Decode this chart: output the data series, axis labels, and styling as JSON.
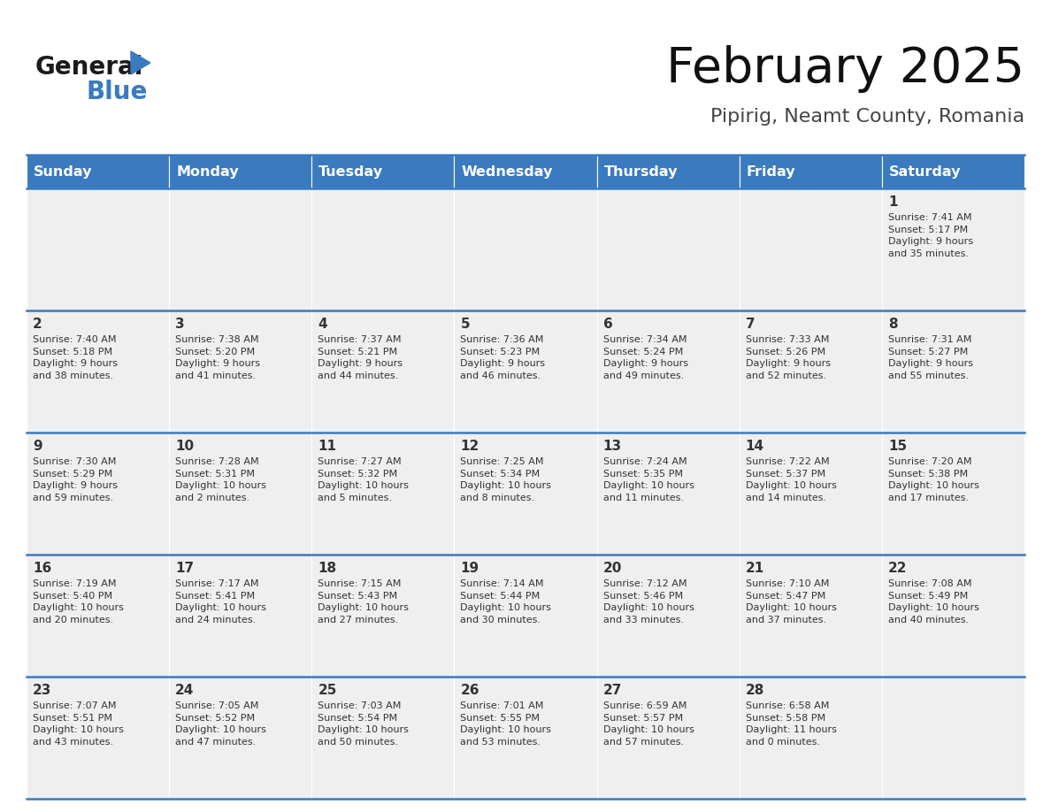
{
  "title": "February 2025",
  "subtitle": "Pipirig, Neamt County, Romania",
  "header_color": "#3a7abf",
  "header_text_color": "#ffffff",
  "cell_bg_color": "#efefef",
  "border_color": "#3a7abf",
  "day_number_color": "#333333",
  "cell_text_color": "#333333",
  "days_of_week": [
    "Sunday",
    "Monday",
    "Tuesday",
    "Wednesday",
    "Thursday",
    "Friday",
    "Saturday"
  ],
  "calendar_data": [
    [
      {
        "day": "",
        "info": ""
      },
      {
        "day": "",
        "info": ""
      },
      {
        "day": "",
        "info": ""
      },
      {
        "day": "",
        "info": ""
      },
      {
        "day": "",
        "info": ""
      },
      {
        "day": "",
        "info": ""
      },
      {
        "day": "1",
        "info": "Sunrise: 7:41 AM\nSunset: 5:17 PM\nDaylight: 9 hours\nand 35 minutes."
      }
    ],
    [
      {
        "day": "2",
        "info": "Sunrise: 7:40 AM\nSunset: 5:18 PM\nDaylight: 9 hours\nand 38 minutes."
      },
      {
        "day": "3",
        "info": "Sunrise: 7:38 AM\nSunset: 5:20 PM\nDaylight: 9 hours\nand 41 minutes."
      },
      {
        "day": "4",
        "info": "Sunrise: 7:37 AM\nSunset: 5:21 PM\nDaylight: 9 hours\nand 44 minutes."
      },
      {
        "day": "5",
        "info": "Sunrise: 7:36 AM\nSunset: 5:23 PM\nDaylight: 9 hours\nand 46 minutes."
      },
      {
        "day": "6",
        "info": "Sunrise: 7:34 AM\nSunset: 5:24 PM\nDaylight: 9 hours\nand 49 minutes."
      },
      {
        "day": "7",
        "info": "Sunrise: 7:33 AM\nSunset: 5:26 PM\nDaylight: 9 hours\nand 52 minutes."
      },
      {
        "day": "8",
        "info": "Sunrise: 7:31 AM\nSunset: 5:27 PM\nDaylight: 9 hours\nand 55 minutes."
      }
    ],
    [
      {
        "day": "9",
        "info": "Sunrise: 7:30 AM\nSunset: 5:29 PM\nDaylight: 9 hours\nand 59 minutes."
      },
      {
        "day": "10",
        "info": "Sunrise: 7:28 AM\nSunset: 5:31 PM\nDaylight: 10 hours\nand 2 minutes."
      },
      {
        "day": "11",
        "info": "Sunrise: 7:27 AM\nSunset: 5:32 PM\nDaylight: 10 hours\nand 5 minutes."
      },
      {
        "day": "12",
        "info": "Sunrise: 7:25 AM\nSunset: 5:34 PM\nDaylight: 10 hours\nand 8 minutes."
      },
      {
        "day": "13",
        "info": "Sunrise: 7:24 AM\nSunset: 5:35 PM\nDaylight: 10 hours\nand 11 minutes."
      },
      {
        "day": "14",
        "info": "Sunrise: 7:22 AM\nSunset: 5:37 PM\nDaylight: 10 hours\nand 14 minutes."
      },
      {
        "day": "15",
        "info": "Sunrise: 7:20 AM\nSunset: 5:38 PM\nDaylight: 10 hours\nand 17 minutes."
      }
    ],
    [
      {
        "day": "16",
        "info": "Sunrise: 7:19 AM\nSunset: 5:40 PM\nDaylight: 10 hours\nand 20 minutes."
      },
      {
        "day": "17",
        "info": "Sunrise: 7:17 AM\nSunset: 5:41 PM\nDaylight: 10 hours\nand 24 minutes."
      },
      {
        "day": "18",
        "info": "Sunrise: 7:15 AM\nSunset: 5:43 PM\nDaylight: 10 hours\nand 27 minutes."
      },
      {
        "day": "19",
        "info": "Sunrise: 7:14 AM\nSunset: 5:44 PM\nDaylight: 10 hours\nand 30 minutes."
      },
      {
        "day": "20",
        "info": "Sunrise: 7:12 AM\nSunset: 5:46 PM\nDaylight: 10 hours\nand 33 minutes."
      },
      {
        "day": "21",
        "info": "Sunrise: 7:10 AM\nSunset: 5:47 PM\nDaylight: 10 hours\nand 37 minutes."
      },
      {
        "day": "22",
        "info": "Sunrise: 7:08 AM\nSunset: 5:49 PM\nDaylight: 10 hours\nand 40 minutes."
      }
    ],
    [
      {
        "day": "23",
        "info": "Sunrise: 7:07 AM\nSunset: 5:51 PM\nDaylight: 10 hours\nand 43 minutes."
      },
      {
        "day": "24",
        "info": "Sunrise: 7:05 AM\nSunset: 5:52 PM\nDaylight: 10 hours\nand 47 minutes."
      },
      {
        "day": "25",
        "info": "Sunrise: 7:03 AM\nSunset: 5:54 PM\nDaylight: 10 hours\nand 50 minutes."
      },
      {
        "day": "26",
        "info": "Sunrise: 7:01 AM\nSunset: 5:55 PM\nDaylight: 10 hours\nand 53 minutes."
      },
      {
        "day": "27",
        "info": "Sunrise: 6:59 AM\nSunset: 5:57 PM\nDaylight: 10 hours\nand 57 minutes."
      },
      {
        "day": "28",
        "info": "Sunrise: 6:58 AM\nSunset: 5:58 PM\nDaylight: 11 hours\nand 0 minutes."
      },
      {
        "day": "",
        "info": ""
      }
    ]
  ]
}
